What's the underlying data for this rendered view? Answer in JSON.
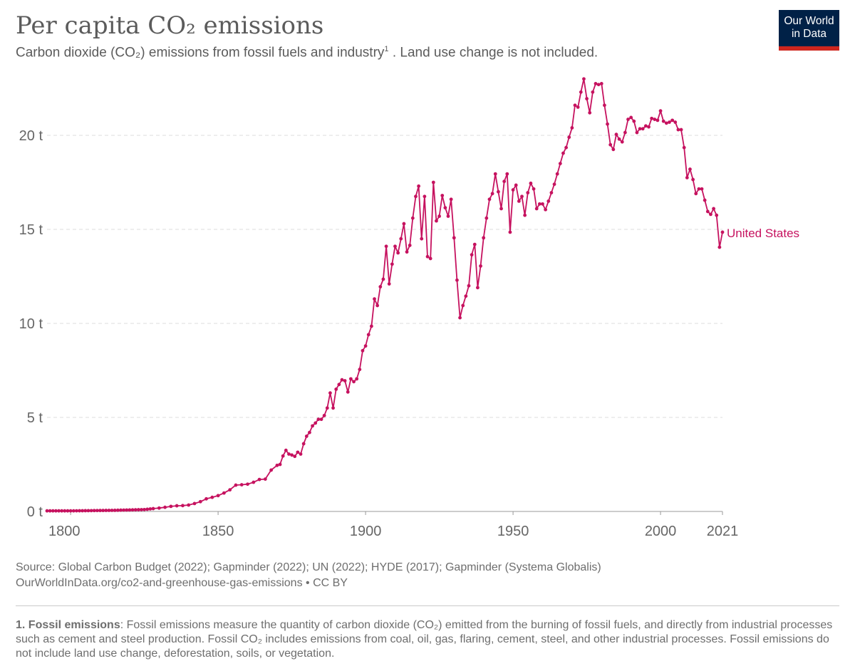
{
  "header": {
    "title": "Per capita CO₂ emissions",
    "subtitle_main": "Carbon dioxide (CO₂) emissions from fossil fuels and industry",
    "subtitle_sup": "1",
    "subtitle_tail": " . Land use change is not included."
  },
  "logo": {
    "line1": "Our World",
    "line2": "in Data"
  },
  "source": {
    "line1": "Source: Global Carbon Budget (2022); Gapminder (2022); UN (2022); HYDE (2017); Gapminder (Systema Globalis)",
    "line2": "OurWorldInData.org/co2-and-greenhouse-gas-emissions • CC BY"
  },
  "footnote": {
    "label": "1. Fossil emissions",
    "text": ": Fossil emissions measure the quantity of carbon dioxide (CO₂) emitted from the burning of fossil fuels, and directly from industrial processes such as cement and steel production. Fossil CO₂ includes emissions from coal, oil, gas, flaring, cement, steel, and other industrial processes. Fossil emissions do not include land use change, deforestation, soils, or vegetation."
  },
  "colors": {
    "series": "#c6125f",
    "grid": "#dddddd",
    "axis": "#666666"
  },
  "chart_data": {
    "type": "line",
    "title": "Per capita CO₂ emissions",
    "xlabel": "",
    "ylabel": "",
    "xlim": [
      1800,
      2021
    ],
    "ylim": [
      0,
      22.5
    ],
    "y_ticks": [
      0,
      5,
      10,
      15,
      20
    ],
    "y_tick_labels": [
      "0 t",
      "5 t",
      "10 t",
      "15 t",
      "20 t"
    ],
    "x_ticks": [
      1800,
      1850,
      1900,
      1950,
      2000,
      2021
    ],
    "x_tick_labels": [
      "1800",
      "1850",
      "1900",
      "1950",
      "2000",
      "2021"
    ],
    "grid": "horizontal dashed",
    "series": [
      {
        "name": "United States",
        "label_position": "end",
        "points": [
          [
            1800,
            0.03
          ],
          [
            1805,
            0.04
          ],
          [
            1810,
            0.05
          ],
          [
            1815,
            0.06
          ],
          [
            1820,
            0.08
          ],
          [
            1825,
            0.1
          ],
          [
            1828,
            0.15
          ],
          [
            1830,
            0.18
          ],
          [
            1832,
            0.22
          ],
          [
            1834,
            0.27
          ],
          [
            1836,
            0.3
          ],
          [
            1838,
            0.31
          ],
          [
            1840,
            0.34
          ],
          [
            1842,
            0.42
          ],
          [
            1844,
            0.52
          ],
          [
            1846,
            0.67
          ],
          [
            1848,
            0.75
          ],
          [
            1850,
            0.84
          ],
          [
            1852,
            0.98
          ],
          [
            1854,
            1.15
          ],
          [
            1856,
            1.4
          ],
          [
            1858,
            1.42
          ],
          [
            1860,
            1.45
          ],
          [
            1862,
            1.55
          ],
          [
            1864,
            1.7
          ],
          [
            1866,
            1.72
          ],
          [
            1868,
            2.2
          ],
          [
            1870,
            2.45
          ],
          [
            1871,
            2.5
          ],
          [
            1872,
            2.95
          ],
          [
            1873,
            3.25
          ],
          [
            1874,
            3.05
          ],
          [
            1875,
            3.0
          ],
          [
            1876,
            2.93
          ],
          [
            1877,
            3.15
          ],
          [
            1878,
            3.05
          ],
          [
            1879,
            3.6
          ],
          [
            1880,
            4.0
          ],
          [
            1881,
            4.2
          ],
          [
            1882,
            4.55
          ],
          [
            1883,
            4.7
          ],
          [
            1884,
            4.9
          ],
          [
            1885,
            4.9
          ],
          [
            1886,
            5.1
          ],
          [
            1887,
            5.5
          ],
          [
            1888,
            6.3
          ],
          [
            1889,
            5.5
          ],
          [
            1890,
            6.5
          ],
          [
            1891,
            6.75
          ],
          [
            1892,
            7.0
          ],
          [
            1893,
            6.95
          ],
          [
            1894,
            6.35
          ],
          [
            1895,
            7.05
          ],
          [
            1896,
            6.9
          ],
          [
            1897,
            7.05
          ],
          [
            1898,
            7.55
          ],
          [
            1899,
            8.55
          ],
          [
            1900,
            8.8
          ],
          [
            1901,
            9.4
          ],
          [
            1902,
            9.85
          ],
          [
            1903,
            11.3
          ],
          [
            1904,
            10.95
          ],
          [
            1905,
            11.95
          ],
          [
            1906,
            12.35
          ],
          [
            1907,
            14.1
          ],
          [
            1908,
            12.1
          ],
          [
            1909,
            13.15
          ],
          [
            1910,
            14.1
          ],
          [
            1911,
            13.75
          ],
          [
            1912,
            14.5
          ],
          [
            1913,
            15.3
          ],
          [
            1914,
            13.8
          ],
          [
            1915,
            14.15
          ],
          [
            1916,
            15.6
          ],
          [
            1917,
            16.75
          ],
          [
            1918,
            17.3
          ],
          [
            1919,
            14.5
          ],
          [
            1920,
            16.75
          ],
          [
            1921,
            13.55
          ],
          [
            1922,
            13.45
          ],
          [
            1923,
            17.5
          ],
          [
            1924,
            15.45
          ],
          [
            1925,
            15.7
          ],
          [
            1926,
            16.8
          ],
          [
            1927,
            16.15
          ],
          [
            1928,
            15.7
          ],
          [
            1929,
            16.6
          ],
          [
            1930,
            14.55
          ],
          [
            1931,
            12.3
          ],
          [
            1932,
            10.3
          ],
          [
            1933,
            10.95
          ],
          [
            1934,
            11.45
          ],
          [
            1935,
            12.0
          ],
          [
            1936,
            13.65
          ],
          [
            1937,
            14.2
          ],
          [
            1938,
            11.9
          ],
          [
            1939,
            13.05
          ],
          [
            1940,
            14.55
          ],
          [
            1941,
            15.6
          ],
          [
            1942,
            16.6
          ],
          [
            1943,
            16.9
          ],
          [
            1944,
            17.95
          ],
          [
            1945,
            17.0
          ],
          [
            1946,
            16.1
          ],
          [
            1947,
            17.55
          ],
          [
            1948,
            17.95
          ],
          [
            1949,
            14.85
          ],
          [
            1950,
            17.1
          ],
          [
            1951,
            17.35
          ],
          [
            1952,
            16.5
          ],
          [
            1953,
            16.75
          ],
          [
            1954,
            15.75
          ],
          [
            1955,
            16.95
          ],
          [
            1956,
            17.45
          ],
          [
            1957,
            17.15
          ],
          [
            1958,
            16.1
          ],
          [
            1959,
            16.35
          ],
          [
            1960,
            16.35
          ],
          [
            1961,
            16.05
          ],
          [
            1962,
            16.5
          ],
          [
            1963,
            16.95
          ],
          [
            1964,
            17.4
          ],
          [
            1965,
            17.95
          ],
          [
            1966,
            18.5
          ],
          [
            1967,
            19.05
          ],
          [
            1968,
            19.35
          ],
          [
            1969,
            19.9
          ],
          [
            1970,
            20.4
          ],
          [
            1971,
            21.6
          ],
          [
            1972,
            21.5
          ],
          [
            1973,
            22.3
          ],
          [
            1974,
            23.0
          ],
          [
            1975,
            21.95
          ],
          [
            1976,
            21.2
          ],
          [
            1977,
            22.3
          ],
          [
            1978,
            22.75
          ],
          [
            1979,
            22.7
          ],
          [
            1980,
            22.75
          ],
          [
            1981,
            21.6
          ],
          [
            1982,
            20.6
          ],
          [
            1983,
            19.5
          ],
          [
            1984,
            19.25
          ],
          [
            1985,
            20.05
          ],
          [
            1986,
            19.8
          ],
          [
            1987,
            19.65
          ],
          [
            1988,
            20.15
          ],
          [
            1989,
            20.85
          ],
          [
            1990,
            20.95
          ],
          [
            1991,
            20.75
          ],
          [
            1992,
            20.15
          ],
          [
            1993,
            20.35
          ],
          [
            1994,
            20.35
          ],
          [
            1995,
            20.5
          ],
          [
            1996,
            20.45
          ],
          [
            1997,
            20.9
          ],
          [
            1998,
            20.85
          ],
          [
            1999,
            20.8
          ],
          [
            2000,
            21.3
          ],
          [
            2001,
            20.75
          ],
          [
            2002,
            20.65
          ],
          [
            2003,
            20.7
          ],
          [
            2004,
            20.8
          ],
          [
            2005,
            20.7
          ],
          [
            2006,
            20.3
          ],
          [
            2007,
            20.3
          ],
          [
            2008,
            19.35
          ],
          [
            2009,
            17.75
          ],
          [
            2010,
            18.2
          ],
          [
            2011,
            17.65
          ],
          [
            2012,
            16.9
          ],
          [
            2013,
            17.15
          ],
          [
            2014,
            17.15
          ],
          [
            2015,
            16.55
          ],
          [
            2016,
            15.95
          ],
          [
            2017,
            15.8
          ],
          [
            2018,
            16.1
          ],
          [
            2019,
            15.75
          ],
          [
            2020,
            14.05
          ],
          [
            2021,
            14.85
          ]
        ]
      }
    ]
  }
}
